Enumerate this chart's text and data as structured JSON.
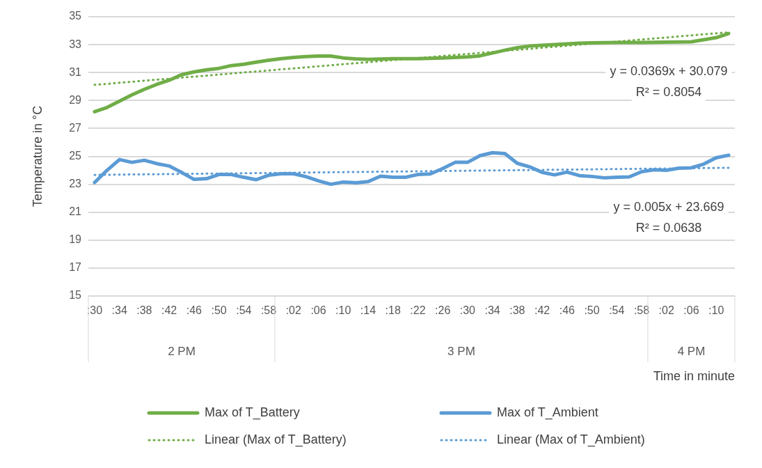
{
  "chart_data": {
    "type": "line",
    "xlabel": "Time in minute",
    "ylabel": "Temperature in °C",
    "legend": "bottom",
    "grid": "y",
    "marker": "none",
    "ylim": [
      15,
      35
    ],
    "yticks": [
      15,
      17,
      19,
      21,
      23,
      25,
      27,
      29,
      31,
      33,
      35
    ],
    "categories": [
      ":30",
      null,
      ":34",
      null,
      ":38",
      null,
      ":42",
      null,
      ":46",
      null,
      ":50",
      null,
      ":54",
      null,
      ":58",
      null,
      ":02",
      null,
      ":06",
      null,
      ":10",
      null,
      ":14",
      null,
      ":18",
      null,
      ":22",
      null,
      ":26",
      null,
      ":30",
      null,
      ":34",
      null,
      ":38",
      null,
      ":42",
      null,
      ":46",
      null,
      ":50",
      null,
      ":54",
      null,
      ":58",
      null,
      ":02",
      null,
      ":06",
      null,
      ":10",
      null
    ],
    "series": [
      {
        "name": "Max of T_Battery",
        "color": "#70ad47",
        "line_style": "solid",
        "values": [
          28.2,
          28.5,
          28.95,
          29.4,
          29.8,
          30.15,
          30.45,
          30.85,
          31.05,
          31.2,
          31.3,
          31.5,
          31.6,
          31.75,
          31.88,
          32.0,
          32.08,
          32.15,
          32.18,
          32.18,
          32.05,
          31.98,
          31.95,
          31.97,
          32.0,
          32.0,
          32.0,
          32.02,
          32.05,
          32.08,
          32.12,
          32.2,
          32.4,
          32.6,
          32.78,
          32.9,
          32.95,
          33.0,
          33.05,
          33.1,
          33.13,
          33.14,
          33.15,
          33.15,
          33.15,
          33.17,
          33.18,
          33.19,
          33.2,
          33.35,
          33.5,
          33.8
        ]
      },
      {
        "name": "Max of T_Ambient",
        "color": "#5b9bd5",
        "line_style": "solid",
        "values": [
          23.13,
          24.0,
          24.77,
          24.57,
          24.72,
          24.48,
          24.31,
          23.85,
          23.35,
          23.4,
          23.7,
          23.7,
          23.5,
          23.33,
          23.65,
          23.75,
          23.75,
          23.55,
          23.25,
          23.0,
          23.16,
          23.11,
          23.19,
          23.58,
          23.5,
          23.5,
          23.7,
          23.74,
          24.13,
          24.57,
          24.57,
          25.05,
          25.26,
          25.2,
          24.5,
          24.25,
          23.85,
          23.67,
          23.87,
          23.62,
          23.56,
          23.46,
          23.5,
          23.53,
          23.9,
          24.04,
          24.0,
          24.15,
          24.18,
          24.45,
          24.9,
          25.08
        ]
      },
      {
        "name": "Linear (Max of T_Battery)",
        "color": "#70ad47",
        "line_style": "dotted",
        "values": [
          30.12,
          30.19,
          30.27,
          30.34,
          30.42,
          30.49,
          30.56,
          30.64,
          30.71,
          30.78,
          30.86,
          30.93,
          31.01,
          31.08,
          31.15,
          31.23,
          31.3,
          31.37,
          31.45,
          31.52,
          31.6,
          31.67,
          31.74,
          31.82,
          31.89,
          31.97,
          32.04,
          32.11,
          32.19,
          32.26,
          32.33,
          32.41,
          32.48,
          32.56,
          32.63,
          32.7,
          32.78,
          32.85,
          32.92,
          33.0,
          33.07,
          33.15,
          33.22,
          33.29,
          33.37,
          33.44,
          33.51,
          33.59,
          33.66,
          33.74,
          33.81,
          33.88
        ]
      },
      {
        "name": "Linear (Max of T_Ambient)",
        "color": "#5b9bd5",
        "line_style": "dotted",
        "values": [
          23.67,
          23.68,
          23.69,
          23.7,
          23.71,
          23.72,
          23.73,
          23.74,
          23.75,
          23.76,
          23.77,
          23.78,
          23.79,
          23.8,
          23.81,
          23.82,
          23.83,
          23.84,
          23.85,
          23.86,
          23.87,
          23.88,
          23.89,
          23.9,
          23.91,
          23.92,
          23.93,
          23.94,
          23.95,
          23.96,
          23.97,
          23.98,
          23.99,
          24.0,
          24.01,
          24.02,
          24.03,
          24.04,
          24.05,
          24.06,
          24.07,
          24.08,
          24.09,
          24.1,
          24.11,
          24.12,
          24.13,
          24.14,
          24.15,
          24.16,
          24.17,
          24.18
        ]
      }
    ],
    "annotations": [
      "2 PM",
      "3 PM",
      "4 PM",
      "y = 0.0369x + 30.079",
      "R² = 0.8054",
      "y = 0.005x + 23.669",
      "R² = 0.0638"
    ]
  }
}
